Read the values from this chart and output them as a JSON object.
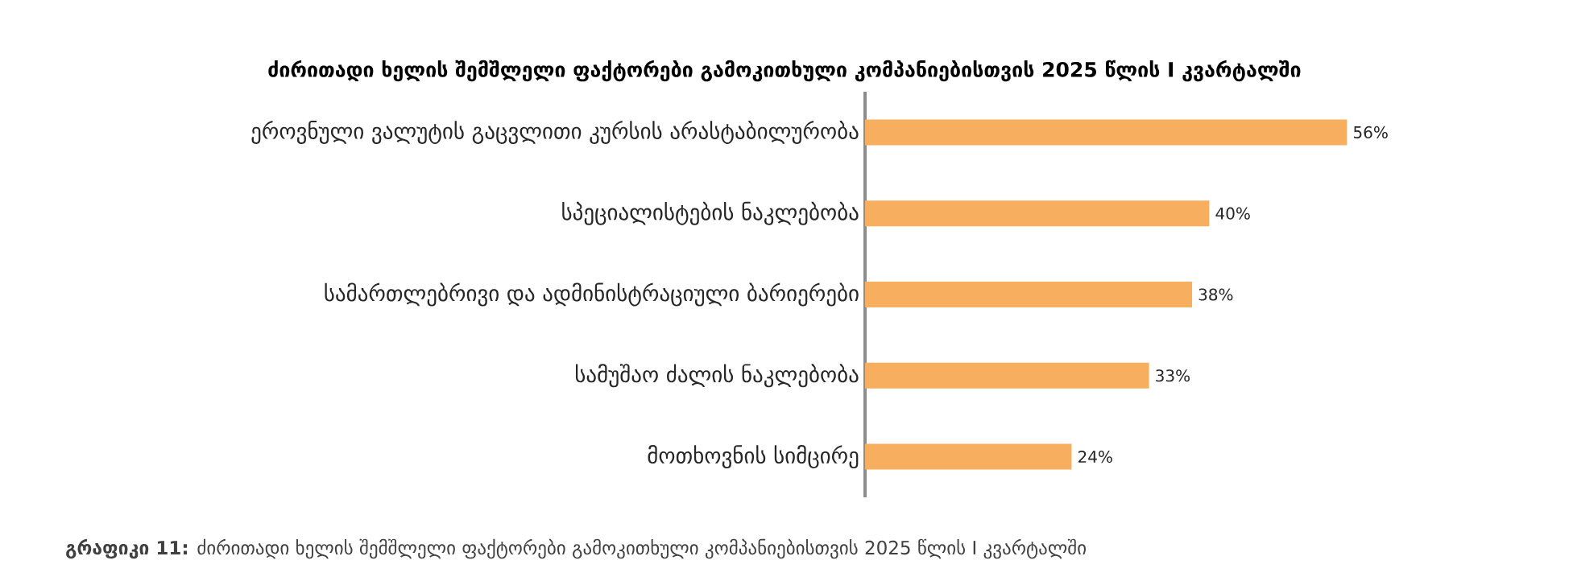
{
  "chart_data": {
    "type": "bar",
    "orientation": "horizontal",
    "title": "ძირითადი ხელის შემშლელი ფაქტორები გამოკითხული კომპანიებისთვის 2025 წლის I კვარტალში",
    "categories": [
      "ეროვნული ვალუტის გაცვლითი კურსის არასტაბილურობა",
      "სპეციალისტების ნაკლებობა",
      "სამართლებრივი და ადმინისტრაციული ბარიერები",
      "სამუშაო ძალის ნაკლებობა",
      "მოთხოვნის სიმცირე"
    ],
    "values": [
      56,
      40,
      38,
      33,
      24
    ],
    "value_labels": [
      "56%",
      "40%",
      "38%",
      "33%",
      "24%"
    ],
    "color": "#f7ae5e",
    "annotations": [
      "**გრაფიკი 11:** ძირითადი ხელის შემშლელი ფაქტორები გამოკითხული კომპანიებისთვის 2025 წლის I კვარტალში"
    ]
  }
}
